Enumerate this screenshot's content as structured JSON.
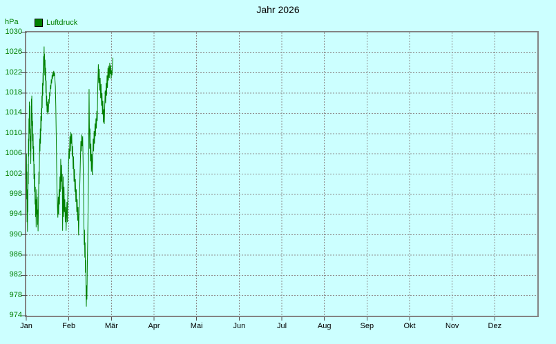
{
  "colors": {
    "background": "#ccffff",
    "line": "#008000",
    "axis_border": "#848484",
    "grid": "#8c8c8c",
    "tick": "#4f4f4f",
    "label_green": "#008000",
    "text": "#000000",
    "legend_fill": "#008000",
    "legend_border": "#000000"
  },
  "chart_data": {
    "type": "line",
    "title": "Jahr 2026",
    "y_unit": "hPa",
    "grid": {
      "style": "dashed",
      "horizontal": true,
      "vertical": true
    },
    "legend": {
      "position": "top-left",
      "entries": [
        {
          "label": "Luftdruck",
          "color": "#008000"
        }
      ]
    },
    "x_tick_labels": [
      "Jan",
      "Feb",
      "Mär",
      "Apr",
      "Mai",
      "Jun",
      "Jul",
      "Aug",
      "Sep",
      "Okt",
      "Nov",
      "Dez"
    ],
    "x_axis": {
      "month_lengths_days": [
        31,
        28,
        31,
        30,
        31,
        30,
        31,
        31,
        30,
        31,
        30,
        31
      ]
    },
    "y_axis": {
      "min": 974,
      "max": 1030,
      "step": 4,
      "tick_labels": [
        1030,
        1026,
        1022,
        1018,
        1014,
        1010,
        1006,
        1002,
        998,
        994,
        990,
        986,
        982,
        978,
        974
      ]
    },
    "series": [
      {
        "name": "Luftdruck",
        "unit": "hPa",
        "x_unit": "day_of_year_zero_based",
        "points": [
          [
            0,
            1001
          ],
          [
            0.15,
            1006
          ],
          [
            0.3,
            997
          ],
          [
            0.45,
            1002.5
          ],
          [
            0.6,
            992.5
          ],
          [
            0.75,
            996.5
          ],
          [
            0.9,
            990.6
          ],
          [
            1.05,
            999
          ],
          [
            1.2,
            994.5
          ],
          [
            1.35,
            1004
          ],
          [
            1.5,
            1000
          ],
          [
            1.65,
            1009
          ],
          [
            1.8,
            1005.5
          ],
          [
            1.95,
            1013
          ],
          [
            2.1,
            1010
          ],
          [
            2.25,
            1016.3
          ],
          [
            2.4,
            1012
          ],
          [
            2.55,
            1015.5
          ],
          [
            2.7,
            1008.5
          ],
          [
            2.85,
            1011
          ],
          [
            3,
            1006.5
          ],
          [
            3.15,
            1009.5
          ],
          [
            3.3,
            1004
          ],
          [
            3.45,
            1007.5
          ],
          [
            3.6,
            1012
          ],
          [
            3.75,
            1016.9
          ],
          [
            3.9,
            1013.5
          ],
          [
            4.05,
            1017.5
          ],
          [
            4.2,
            1011.5
          ],
          [
            4.35,
            1014
          ],
          [
            4.5,
            1008.5
          ],
          [
            4.65,
            1012.5
          ],
          [
            4.8,
            1007
          ],
          [
            5,
            1010
          ],
          [
            5.2,
            1004.5
          ],
          [
            5.4,
            1007.5
          ],
          [
            5.6,
            1001
          ],
          [
            5.8,
            1004
          ],
          [
            6,
            998.5
          ],
          [
            6.2,
            1002
          ],
          [
            6.4,
            996
          ],
          [
            6.6,
            999.5
          ],
          [
            6.8,
            993.5
          ],
          [
            7,
            997
          ],
          [
            7.2,
            991.5
          ],
          [
            7.4,
            995.5
          ],
          [
            7.6,
            999
          ],
          [
            7.8,
            994
          ],
          [
            8,
            997.5
          ],
          [
            8.2,
            992
          ],
          [
            8.4,
            995
          ],
          [
            8.6,
            990.7
          ],
          [
            8.8,
            994
          ],
          [
            9,
            998
          ],
          [
            9.2,
            1002.5
          ],
          [
            9.4,
            1000
          ],
          [
            9.6,
            1005
          ],
          [
            9.8,
            1009
          ],
          [
            10,
            1006.5
          ],
          [
            10.2,
            1011
          ],
          [
            10.4,
            1008
          ],
          [
            10.6,
            1013.5
          ],
          [
            10.8,
            1010.5
          ],
          [
            11,
            1015
          ],
          [
            11.2,
            1012.5
          ],
          [
            11.4,
            1017.5
          ],
          [
            11.6,
            1015
          ],
          [
            11.8,
            1020
          ],
          [
            12,
            1017.5
          ],
          [
            12.2,
            1022
          ],
          [
            12.4,
            1019.5
          ],
          [
            12.6,
            1025.3
          ],
          [
            12.8,
            1022
          ],
          [
            13,
            1027.2
          ],
          [
            13.15,
            1023.5
          ],
          [
            13.3,
            1025.8
          ],
          [
            13.5,
            1021.5
          ],
          [
            13.7,
            1024.6
          ],
          [
            13.9,
            1020.5
          ],
          [
            14.1,
            1023
          ],
          [
            14.3,
            1018
          ],
          [
            14.5,
            1020.5
          ],
          [
            14.7,
            1015.5
          ],
          [
            14.9,
            1017.5
          ],
          [
            15.1,
            1014.2
          ],
          [
            15.35,
            1016.3
          ],
          [
            15.6,
            1013.8
          ],
          [
            15.85,
            1015.8
          ],
          [
            16.1,
            1014.2
          ],
          [
            16.4,
            1016.8
          ],
          [
            16.7,
            1015.9
          ],
          [
            17,
            1018.2
          ],
          [
            17.3,
            1017.4
          ],
          [
            17.6,
            1019.6
          ],
          [
            17.9,
            1018.8
          ],
          [
            18.2,
            1020.7
          ],
          [
            18.5,
            1019.9
          ],
          [
            18.8,
            1021.6
          ],
          [
            19.1,
            1020.8
          ],
          [
            19.4,
            1022.1
          ],
          [
            19.7,
            1021.3
          ],
          [
            20,
            1022.4
          ],
          [
            20.3,
            1021.4
          ],
          [
            20.6,
            1022
          ],
          [
            20.9,
            1020.6
          ],
          [
            21.2,
            1019.3
          ],
          [
            21.5,
            1015.5
          ],
          [
            21.8,
            1010
          ],
          [
            22.1,
            1004
          ],
          [
            22.4,
            998.5
          ],
          [
            22.7,
            995.5
          ],
          [
            23,
            993.4
          ],
          [
            23.3,
            997.5
          ],
          [
            23.6,
            994
          ],
          [
            23.9,
            999
          ],
          [
            24.2,
            996
          ],
          [
            24.5,
            1001.5
          ],
          [
            24.8,
            998.5
          ],
          [
            25.1,
            1005
          ],
          [
            25.4,
            1000.5
          ],
          [
            25.7,
            1003.8
          ],
          [
            26,
            999
          ],
          [
            26.2,
            1002
          ],
          [
            26.45,
            990.8
          ],
          [
            26.7,
            997
          ],
          [
            26.9,
            1001.5
          ],
          [
            27.2,
            993.5
          ],
          [
            27.5,
            999.5
          ],
          [
            27.8,
            994.5
          ],
          [
            28.1,
            997
          ],
          [
            28.4,
            992.5
          ],
          [
            28.7,
            995.5
          ],
          [
            29,
            990.8
          ],
          [
            29.3,
            994
          ],
          [
            29.6,
            996.5
          ],
          [
            29.9,
            992.5
          ],
          [
            30.2,
            997.5
          ],
          [
            30.5,
            1001
          ],
          [
            30.8,
            1004.5
          ],
          [
            31.1,
            1007
          ],
          [
            31.4,
            1005
          ],
          [
            31.7,
            1009.5
          ],
          [
            32,
            1006.5
          ],
          [
            32.3,
            1010.3
          ],
          [
            32.6,
            1008
          ],
          [
            32.9,
            1010
          ],
          [
            33.2,
            1005.5
          ],
          [
            33.5,
            1007.5
          ],
          [
            33.8,
            1003
          ],
          [
            34.1,
            1005.5
          ],
          [
            34.4,
            1000.5
          ],
          [
            34.7,
            1003
          ],
          [
            35,
            998.5
          ],
          [
            35.3,
            1001
          ],
          [
            35.6,
            996.5
          ],
          [
            35.9,
            999
          ],
          [
            36.2,
            994.5
          ],
          [
            36.5,
            997
          ],
          [
            36.8,
            992.8
          ],
          [
            37.1,
            995.5
          ],
          [
            37.4,
            989.9
          ],
          [
            37.7,
            994
          ],
          [
            38,
            997.5
          ],
          [
            38.3,
            1001
          ],
          [
            38.6,
            1005
          ],
          [
            38.9,
            1008.5
          ],
          [
            39.2,
            1006.5
          ],
          [
            39.5,
            1009.8
          ],
          [
            39.8,
            1007.5
          ],
          [
            40.1,
            1009.5
          ],
          [
            40.4,
            1004
          ],
          [
            40.7,
            998
          ],
          [
            40.9,
            992
          ],
          [
            41.1,
            988
          ],
          [
            41.3,
            991
          ],
          [
            41.5,
            985.5
          ],
          [
            41.7,
            988.5
          ],
          [
            41.9,
            982.5
          ],
          [
            42.1,
            985
          ],
          [
            42.3,
            979
          ],
          [
            42.5,
            975.8
          ],
          [
            42.7,
            980
          ],
          [
            42.9,
            977.2
          ],
          [
            43.1,
            983
          ],
          [
            43.4,
            989
          ],
          [
            43.7,
            996
          ],
          [
            43.9,
            1003
          ],
          [
            44.1,
            1010
          ],
          [
            44.3,
            1018.8
          ],
          [
            44.5,
            1012
          ],
          [
            44.7,
            1007
          ],
          [
            44.9,
            1011
          ],
          [
            45.2,
            1004.5
          ],
          [
            45.5,
            1008
          ],
          [
            45.8,
            1002.5
          ],
          [
            46.1,
            1006
          ],
          [
            46.4,
            1001.8
          ],
          [
            46.7,
            1005
          ],
          [
            47,
            1009
          ],
          [
            47.3,
            1006.5
          ],
          [
            47.6,
            1010.5
          ],
          [
            47.9,
            1008
          ],
          [
            48.2,
            1012
          ],
          [
            48.5,
            1009.5
          ],
          [
            48.8,
            1013
          ],
          [
            49.1,
            1011
          ],
          [
            49.4,
            1014.5
          ],
          [
            49.7,
            1012.5
          ],
          [
            50,
            1019
          ],
          [
            50.4,
            1023.7
          ],
          [
            50.7,
            1020
          ],
          [
            51,
            1022.8
          ],
          [
            51.3,
            1018.5
          ],
          [
            51.6,
            1021
          ],
          [
            51.9,
            1017
          ],
          [
            52.2,
            1019.8
          ],
          [
            52.5,
            1015.5
          ],
          [
            52.8,
            1018
          ],
          [
            53.1,
            1013.8
          ],
          [
            53.4,
            1016.5
          ],
          [
            53.7,
            1012.2
          ],
          [
            54,
            1014.8
          ],
          [
            54.3,
            1011.9
          ],
          [
            54.6,
            1015.5
          ],
          [
            54.9,
            1018.5
          ],
          [
            55.2,
            1016
          ],
          [
            55.5,
            1020
          ],
          [
            55.8,
            1017.5
          ],
          [
            56.1,
            1021.5
          ],
          [
            56.4,
            1019
          ],
          [
            56.7,
            1023
          ],
          [
            57,
            1020.5
          ],
          [
            57.3,
            1023.4
          ],
          [
            57.6,
            1021
          ],
          [
            57.9,
            1024
          ],
          [
            58.2,
            1021.8
          ],
          [
            58.5,
            1023.5
          ],
          [
            58.8,
            1020.8
          ],
          [
            59.1,
            1022.5
          ],
          [
            59.4,
            1021.5
          ],
          [
            59.7,
            1023.2
          ],
          [
            60,
            1025
          ]
        ]
      }
    ]
  }
}
